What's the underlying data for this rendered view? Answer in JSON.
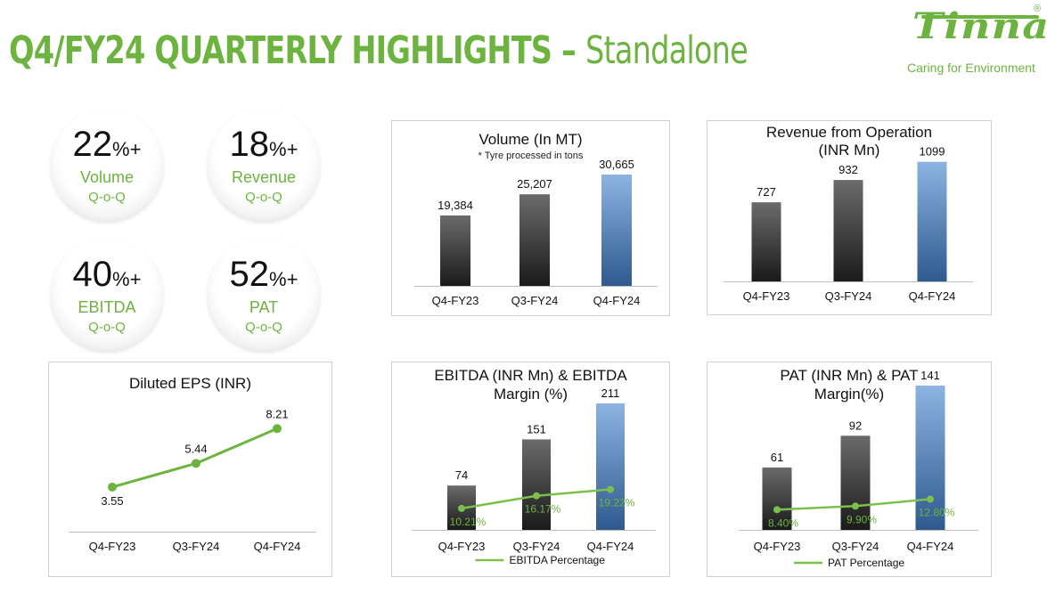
{
  "header": {
    "title_main": "Q4/FY24 QUARTERLY HIGHLIGHTS – ",
    "title_suffix": "Standalone"
  },
  "logo": {
    "name": "Tinna",
    "tagline": "Caring for Environment",
    "registered": "®"
  },
  "colors": {
    "brand_green": "#6cb33f",
    "bar_dark": "#2b2b2b",
    "bar_blue": "#4f81bd"
  },
  "highlights": [
    {
      "value": "22",
      "suffix": "%+",
      "label": "Volume",
      "period": "Q-o-Q"
    },
    {
      "value": "18",
      "suffix": "%+",
      "label": "Revenue",
      "period": "Q-o-Q"
    },
    {
      "value": "40",
      "suffix": "%+",
      "label": "EBITDA",
      "period": "Q-o-Q"
    },
    {
      "value": "52",
      "suffix": "%+",
      "label": "PAT",
      "period": "Q-o-Q"
    }
  ],
  "chart_data": [
    {
      "id": "volume",
      "type": "bar",
      "title": "Volume (In MT)",
      "subtitle": "* Tyre processed in tons",
      "categories": [
        "Q4-FY23",
        "Q3-FY24",
        "Q4-FY24"
      ],
      "values": [
        19384,
        25207,
        30665
      ],
      "value_labels": [
        "19,384",
        "25,207",
        "30,665"
      ],
      "ylim": [
        0,
        38000
      ],
      "highlight_last": true
    },
    {
      "id": "revenue",
      "type": "bar",
      "title": "Revenue from Operation",
      "title_line2": "(INR Mn)",
      "categories": [
        "Q4-FY23",
        "Q3-FY24",
        "Q4-FY24"
      ],
      "values": [
        727,
        932,
        1099
      ],
      "value_labels": [
        "727",
        "932",
        "1099"
      ],
      "ylim": [
        0,
        1260
      ],
      "highlight_last": true
    },
    {
      "id": "eps",
      "type": "line",
      "title": "Diluted EPS (INR)",
      "categories": [
        "Q4-FY23",
        "Q3-FY24",
        "Q4-FY24"
      ],
      "values": [
        3.55,
        5.44,
        8.21
      ],
      "value_labels": [
        "3.55",
        "5.44",
        "8.21"
      ],
      "ylim": [
        0,
        10.5
      ]
    },
    {
      "id": "ebitda",
      "type": "bar",
      "title": "EBITDA (INR Mn) & EBITDA",
      "title_line2": "Margin (%)",
      "categories": [
        "Q4-FY23",
        "Q3-FY24",
        "Q4-FY24"
      ],
      "values": [
        74,
        151,
        211
      ],
      "value_labels": [
        "74",
        "151",
        "211"
      ],
      "ylim": [
        0,
        211
      ],
      "highlight_last": true,
      "line_series": {
        "name": "EBITDA Percentage",
        "values": [
          10.21,
          16.17,
          19.22
        ],
        "value_labels": [
          "10.21%",
          "16.17%",
          "19.22%"
        ],
        "ylim": [
          0,
          60
        ]
      }
    },
    {
      "id": "pat",
      "type": "bar",
      "title": "PAT (INR Mn) & PAT",
      "title_line2": "Margin(%)",
      "categories": [
        "Q4-FY23",
        "Q3-FY24",
        "Q4-FY24"
      ],
      "values": [
        61,
        92,
        141
      ],
      "value_labels": [
        "61",
        "92",
        "141"
      ],
      "ylim": [
        0,
        141
      ],
      "highlight_last": true,
      "line_series": {
        "name": "PAT Percentage",
        "values": [
          8.4,
          9.9,
          12.8
        ],
        "value_labels": [
          "8.40%",
          "9.90%",
          "12.80%"
        ],
        "ylim": [
          0,
          60
        ]
      }
    }
  ]
}
